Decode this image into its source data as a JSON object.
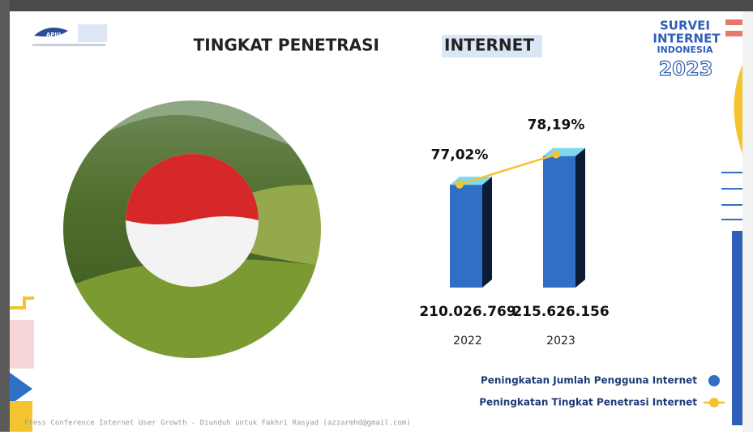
{
  "header": {
    "logo_text": "APJII",
    "title": "TINGKAT PENETRASI",
    "title_highlight": "INTERNET"
  },
  "badge": {
    "line1": "SURVEI",
    "line2": "INTERNET",
    "line3": "INDONESIA",
    "year": "2023"
  },
  "footer": "Press Conference Internet User Growth - Diunduh untuk Fakhri Rasyad (azzarmhd@gmail.com)",
  "chart_data": {
    "type": "bar",
    "categories": [
      "2022",
      "2023"
    ],
    "ylim": [
      190000000,
      220000000
    ],
    "y2lim": [
      73,
      79
    ],
    "series": [
      {
        "name": "Peningkatan Jumlah Pengguna Internet",
        "color": "#2f6fc4",
        "values": [
          210026769,
          215626156
        ],
        "value_labels": [
          "210.026.769",
          "215.626.156"
        ]
      },
      {
        "name": "Peningkatan Tingkat Penetrasi Internet",
        "type": "line",
        "axis": "y2",
        "color": "#f4c430",
        "values": [
          77.02,
          78.19
        ],
        "value_labels": [
          "77,02%",
          "78,19%"
        ]
      }
    ]
  }
}
